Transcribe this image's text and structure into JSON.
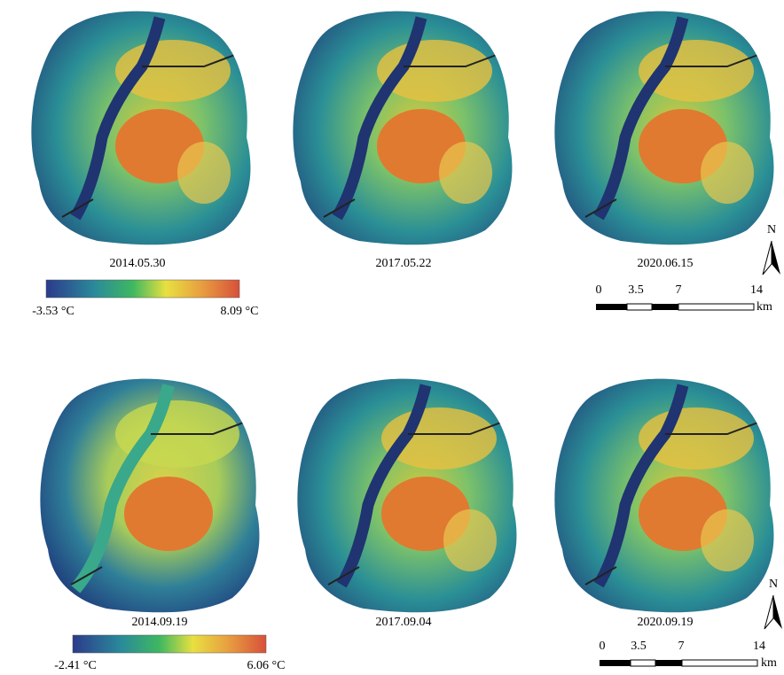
{
  "rows": [
    {
      "panels": [
        {
          "date": "2014.05.30"
        },
        {
          "date": "2017.05.22"
        },
        {
          "date": "2020.06.15"
        }
      ],
      "colorbar": {
        "min_label": "-3.53 °C",
        "max_label": "8.09 °C"
      },
      "scale_bar": {
        "ticks": [
          "0",
          "3.5",
          "7",
          "14"
        ],
        "unit": "km",
        "north": "N"
      }
    },
    {
      "panels": [
        {
          "date": "2014.09.19"
        },
        {
          "date": "2017.09.04"
        },
        {
          "date": "2020.09.19"
        }
      ],
      "colorbar": {
        "min_label": "-2.41 °C",
        "max_label": "6.06 °C"
      },
      "scale_bar": {
        "ticks": [
          "0",
          "3.5",
          "7",
          "14"
        ],
        "unit": "km",
        "north": "N"
      }
    }
  ]
}
